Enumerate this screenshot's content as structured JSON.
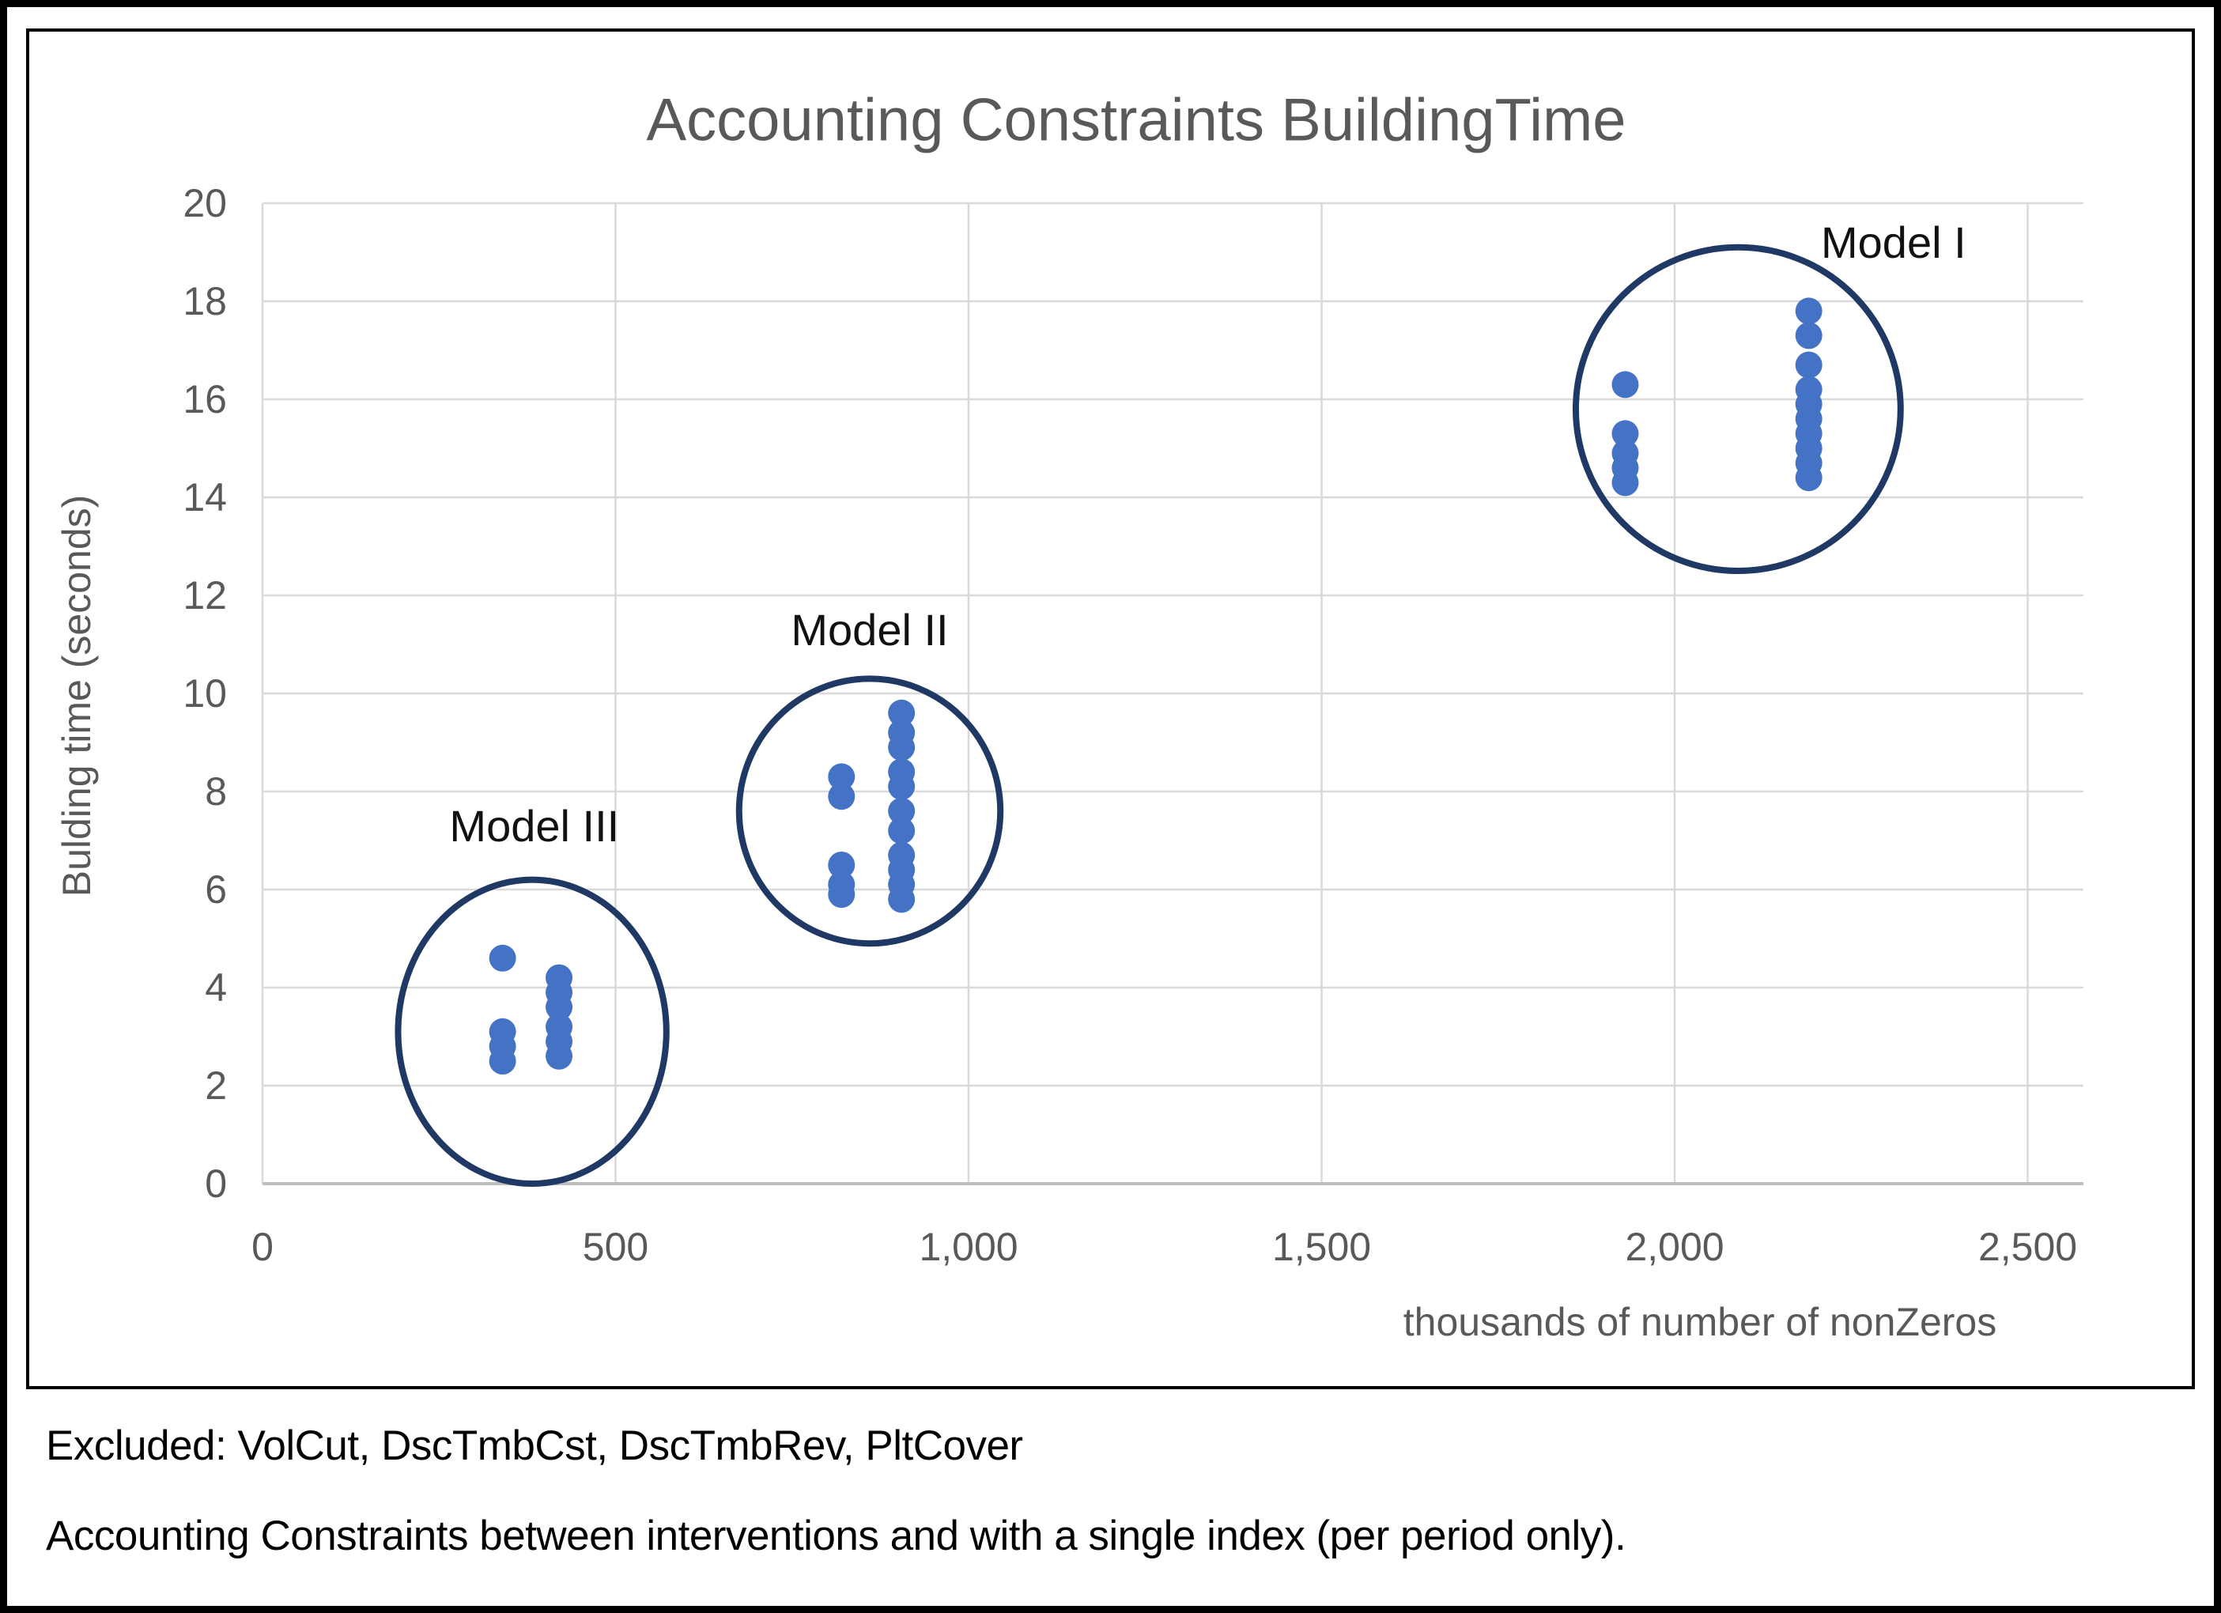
{
  "figure": {
    "footnote_line1": "Excluded: VolCut, DscTmbCst, DscTmbRev, PltCover",
    "footnote_line2": "Accounting Constraints between interventions and with a single index (per period only)."
  },
  "chart_data": {
    "type": "scatter",
    "title": "Accounting Constraints BuildingTime",
    "xlabel": "thousands of number of nonZeros",
    "ylabel": "Bulding time (seconds)",
    "xlim": [
      0,
      2560
    ],
    "ylim": [
      0,
      20
    ],
    "x_ticks": [
      0,
      500,
      1000,
      1500,
      2000,
      2500
    ],
    "x_tick_labels": [
      "0",
      "500",
      "1,000",
      "1,500",
      "2,000",
      "2,500"
    ],
    "y_ticks": [
      0,
      2,
      4,
      6,
      8,
      10,
      12,
      14,
      16,
      18,
      20
    ],
    "grid": true,
    "legend": "none",
    "series": [
      {
        "name": "Model I",
        "points": [
          [
            1930,
            16.3
          ],
          [
            1930,
            15.3
          ],
          [
            1930,
            14.9
          ],
          [
            1930,
            14.6
          ],
          [
            1930,
            14.3
          ],
          [
            2190,
            17.8
          ],
          [
            2190,
            17.3
          ],
          [
            2190,
            16.7
          ],
          [
            2190,
            16.2
          ],
          [
            2190,
            15.9
          ],
          [
            2190,
            15.6
          ],
          [
            2190,
            15.3
          ],
          [
            2190,
            15.0
          ],
          [
            2190,
            14.7
          ],
          [
            2190,
            14.4
          ]
        ]
      },
      {
        "name": "Model II",
        "points": [
          [
            820,
            8.3
          ],
          [
            820,
            7.9
          ],
          [
            820,
            6.5
          ],
          [
            820,
            6.1
          ],
          [
            820,
            5.9
          ],
          [
            905,
            9.6
          ],
          [
            905,
            9.2
          ],
          [
            905,
            8.9
          ],
          [
            905,
            8.4
          ],
          [
            905,
            8.1
          ],
          [
            905,
            7.6
          ],
          [
            905,
            7.2
          ],
          [
            905,
            6.7
          ],
          [
            905,
            6.4
          ],
          [
            905,
            6.1
          ],
          [
            905,
            5.8
          ]
        ]
      },
      {
        "name": "Model III",
        "points": [
          [
            340,
            4.6
          ],
          [
            340,
            3.1
          ],
          [
            340,
            2.8
          ],
          [
            340,
            2.5
          ],
          [
            420,
            4.2
          ],
          [
            420,
            3.9
          ],
          [
            420,
            3.6
          ],
          [
            420,
            3.2
          ],
          [
            420,
            2.9
          ],
          [
            420,
            2.6
          ]
        ]
      }
    ],
    "annotations": [
      {
        "label": "Model I",
        "label_x": 2310,
        "label_y": 19.2,
        "circle": {
          "cx": 2090,
          "cy": 15.8,
          "rx": 230,
          "ry": 3.3
        }
      },
      {
        "label": "Model II",
        "label_x": 860,
        "label_y": 11.3,
        "circle": {
          "cx": 860,
          "cy": 7.6,
          "rx": 185,
          "ry": 2.7
        }
      },
      {
        "label": "Model III",
        "label_x": 385,
        "label_y": 7.3,
        "circle": {
          "cx": 382,
          "cy": 3.1,
          "rx": 190,
          "ry": 3.1
        }
      }
    ],
    "colors": {
      "point": "#4472C4",
      "cluster_circle": "#1F3864",
      "grid": "#D9D9D9",
      "axis_line": "#BFBFBF",
      "axis_text": "#595959",
      "title_text": "#595959",
      "annotation_text": "#111111"
    }
  }
}
